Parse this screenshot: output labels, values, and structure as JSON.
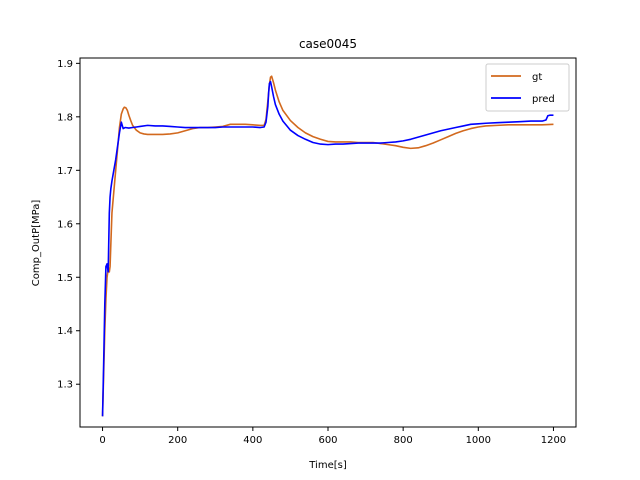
{
  "chart_data": {
    "type": "line",
    "title": "case0045",
    "xlabel": "Time[s]",
    "ylabel": "Comp_OutP[MPa]",
    "xlim": [
      -60,
      1260
    ],
    "ylim": [
      1.22,
      1.91
    ],
    "xticks": [
      0,
      200,
      400,
      600,
      800,
      1000,
      1200
    ],
    "yticks": [
      1.3,
      1.4,
      1.5,
      1.6,
      1.7,
      1.8,
      1.9
    ],
    "xtick_labels": [
      "0",
      "200",
      "400",
      "600",
      "800",
      "1000",
      "1200"
    ],
    "ytick_labels": [
      "1.3",
      "1.4",
      "1.5",
      "1.6",
      "1.7",
      "1.8",
      "1.9"
    ],
    "grid": false,
    "legend_position": "top-right",
    "series": [
      {
        "name": "gt",
        "color": "#d2691e",
        "x": [
          0,
          3,
          6,
          9,
          12,
          15,
          18,
          20,
          22,
          25,
          30,
          35,
          40,
          45,
          50,
          55,
          58,
          62,
          66,
          70,
          75,
          80,
          90,
          100,
          110,
          120,
          140,
          160,
          180,
          200,
          220,
          240,
          260,
          280,
          300,
          320,
          340,
          360,
          380,
          400,
          420,
          430,
          435,
          440,
          444,
          447,
          450,
          455,
          460,
          470,
          480,
          500,
          520,
          540,
          560,
          580,
          600,
          620,
          640,
          660,
          680,
          700,
          720,
          740,
          760,
          780,
          800,
          820,
          840,
          860,
          880,
          900,
          920,
          940,
          960,
          980,
          1000,
          1020,
          1050,
          1080,
          1110,
          1140,
          1170,
          1200
        ],
        "y": [
          1.24,
          1.32,
          1.4,
          1.46,
          1.5,
          1.515,
          1.51,
          1.52,
          1.56,
          1.62,
          1.66,
          1.7,
          1.74,
          1.78,
          1.805,
          1.815,
          1.818,
          1.817,
          1.812,
          1.803,
          1.793,
          1.784,
          1.775,
          1.77,
          1.768,
          1.767,
          1.767,
          1.767,
          1.768,
          1.77,
          1.774,
          1.778,
          1.78,
          1.78,
          1.781,
          1.782,
          1.786,
          1.786,
          1.786,
          1.785,
          1.784,
          1.784,
          1.795,
          1.83,
          1.86,
          1.874,
          1.876,
          1.864,
          1.85,
          1.828,
          1.812,
          1.793,
          1.78,
          1.77,
          1.763,
          1.758,
          1.754,
          1.753,
          1.753,
          1.753,
          1.752,
          1.752,
          1.752,
          1.75,
          1.748,
          1.746,
          1.743,
          1.741,
          1.742,
          1.746,
          1.751,
          1.757,
          1.763,
          1.769,
          1.774,
          1.778,
          1.781,
          1.783,
          1.784,
          1.785,
          1.785,
          1.785,
          1.785,
          1.786
        ]
      },
      {
        "name": "pred",
        "color": "#0000ff",
        "x": [
          0,
          3,
          6,
          9,
          12,
          15,
          18,
          20,
          22,
          25,
          30,
          35,
          40,
          45,
          50,
          52,
          55,
          60,
          70,
          80,
          90,
          100,
          120,
          140,
          160,
          180,
          200,
          220,
          240,
          260,
          280,
          300,
          320,
          340,
          360,
          380,
          400,
          420,
          430,
          435,
          440,
          442,
          444,
          447,
          450,
          455,
          460,
          470,
          480,
          500,
          520,
          540,
          560,
          580,
          600,
          620,
          640,
          660,
          680,
          700,
          720,
          740,
          760,
          780,
          800,
          820,
          840,
          860,
          880,
          900,
          920,
          940,
          960,
          980,
          1000,
          1020,
          1050,
          1080,
          1110,
          1140,
          1170,
          1180,
          1185,
          1190,
          1200
        ],
        "y": [
          1.24,
          1.34,
          1.45,
          1.52,
          1.525,
          1.51,
          1.62,
          1.65,
          1.665,
          1.68,
          1.7,
          1.72,
          1.745,
          1.77,
          1.79,
          1.785,
          1.778,
          1.78,
          1.779,
          1.78,
          1.781,
          1.782,
          1.784,
          1.783,
          1.783,
          1.782,
          1.781,
          1.78,
          1.78,
          1.78,
          1.78,
          1.78,
          1.781,
          1.781,
          1.781,
          1.781,
          1.781,
          1.78,
          1.781,
          1.79,
          1.82,
          1.845,
          1.862,
          1.866,
          1.856,
          1.838,
          1.823,
          1.805,
          1.792,
          1.775,
          1.765,
          1.758,
          1.752,
          1.749,
          1.748,
          1.749,
          1.749,
          1.75,
          1.751,
          1.751,
          1.751,
          1.751,
          1.752,
          1.753,
          1.755,
          1.758,
          1.762,
          1.766,
          1.77,
          1.774,
          1.777,
          1.78,
          1.783,
          1.786,
          1.787,
          1.788,
          1.789,
          1.79,
          1.791,
          1.792,
          1.792,
          1.794,
          1.802,
          1.803,
          1.803
        ]
      }
    ]
  }
}
